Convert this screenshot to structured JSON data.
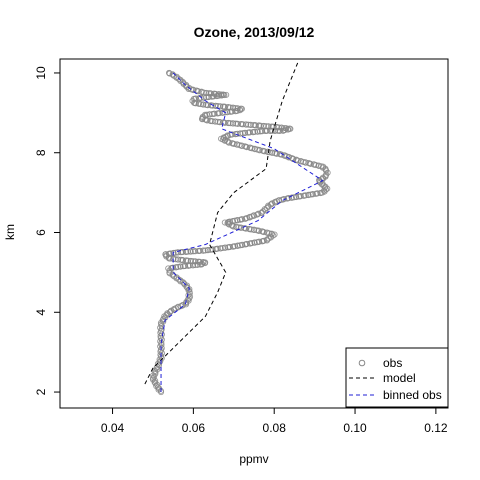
{
  "chart_data": {
    "type": "line",
    "title": "Ozone, 2013/09/12",
    "xlabel": "ppmv",
    "ylabel": "km",
    "xlim": [
      0.027,
      0.123
    ],
    "ylim": [
      1.6,
      10.35
    ],
    "xticks": [
      {
        "value": 0.04,
        "label": "0.04"
      },
      {
        "value": 0.06,
        "label": "0.06"
      },
      {
        "value": 0.08,
        "label": "0.08"
      },
      {
        "value": 0.1,
        "label": "0.10"
      },
      {
        "value": 0.12,
        "label": "0.12"
      }
    ],
    "yticks": [
      {
        "value": 2,
        "label": "2"
      },
      {
        "value": 4,
        "label": "4"
      },
      {
        "value": 6,
        "label": "6"
      },
      {
        "value": 8,
        "label": "8"
      },
      {
        "value": 10,
        "label": "10"
      }
    ],
    "grid": false,
    "legend_position": "bottom-right",
    "series": [
      {
        "name": "obs",
        "style": "points",
        "color": "#888888",
        "path": [
          [
            0.052,
            2.0
          ],
          [
            0.051,
            2.15
          ],
          [
            0.05,
            2.35
          ],
          [
            0.051,
            2.6
          ],
          [
            0.052,
            2.85
          ],
          [
            0.052,
            3.1
          ],
          [
            0.052,
            3.4
          ],
          [
            0.052,
            3.7
          ],
          [
            0.053,
            3.9
          ],
          [
            0.054,
            4.0
          ],
          [
            0.056,
            4.12
          ],
          [
            0.058,
            4.2
          ],
          [
            0.059,
            4.35
          ],
          [
            0.059,
            4.55
          ],
          [
            0.058,
            4.7
          ],
          [
            0.056,
            4.85
          ],
          [
            0.054,
            5.0
          ],
          [
            0.054,
            5.1
          ],
          [
            0.057,
            5.15
          ],
          [
            0.062,
            5.2
          ],
          [
            0.063,
            5.25
          ],
          [
            0.058,
            5.3
          ],
          [
            0.054,
            5.35
          ],
          [
            0.053,
            5.45
          ],
          [
            0.056,
            5.5
          ],
          [
            0.063,
            5.55
          ],
          [
            0.07,
            5.65
          ],
          [
            0.078,
            5.8
          ],
          [
            0.08,
            5.95
          ],
          [
            0.076,
            6.05
          ],
          [
            0.07,
            6.15
          ],
          [
            0.068,
            6.25
          ],
          [
            0.073,
            6.35
          ],
          [
            0.077,
            6.5
          ],
          [
            0.079,
            6.7
          ],
          [
            0.081,
            6.8
          ],
          [
            0.083,
            6.85
          ],
          [
            0.086,
            6.9
          ],
          [
            0.089,
            6.95
          ],
          [
            0.092,
            7.0
          ],
          [
            0.093,
            7.1
          ],
          [
            0.092,
            7.2
          ],
          [
            0.091,
            7.3
          ],
          [
            0.092,
            7.35
          ],
          [
            0.093,
            7.45
          ],
          [
            0.093,
            7.55
          ],
          [
            0.092,
            7.65
          ],
          [
            0.09,
            7.7
          ],
          [
            0.086,
            7.8
          ],
          [
            0.082,
            7.95
          ],
          [
            0.077,
            8.05
          ],
          [
            0.073,
            8.15
          ],
          [
            0.069,
            8.25
          ],
          [
            0.067,
            8.35
          ],
          [
            0.069,
            8.45
          ],
          [
            0.073,
            8.5
          ],
          [
            0.078,
            8.55
          ],
          [
            0.082,
            8.55
          ],
          [
            0.084,
            8.6
          ],
          [
            0.08,
            8.65
          ],
          [
            0.074,
            8.7
          ],
          [
            0.068,
            8.75
          ],
          [
            0.064,
            8.8
          ],
          [
            0.062,
            8.85
          ],
          [
            0.063,
            8.95
          ],
          [
            0.067,
            9.0
          ],
          [
            0.071,
            9.05
          ],
          [
            0.072,
            9.1
          ],
          [
            0.068,
            9.15
          ],
          [
            0.063,
            9.2
          ],
          [
            0.06,
            9.25
          ],
          [
            0.06,
            9.35
          ],
          [
            0.064,
            9.4
          ],
          [
            0.068,
            9.45
          ],
          [
            0.063,
            9.5
          ],
          [
            0.059,
            9.6
          ],
          [
            0.058,
            9.7
          ],
          [
            0.057,
            9.8
          ],
          [
            0.056,
            9.88
          ],
          [
            0.055,
            9.95
          ],
          [
            0.054,
            10.0
          ]
        ]
      },
      {
        "name": "model",
        "style": "dashed",
        "color": "#000000",
        "x": [
          0.048,
          0.05,
          0.056,
          0.063,
          0.066,
          0.068,
          0.064,
          0.066,
          0.07,
          0.078,
          0.079,
          0.082,
          0.086
        ],
        "y": [
          2.2,
          2.6,
          3.2,
          3.9,
          4.5,
          5.0,
          5.7,
          6.5,
          7.0,
          7.6,
          8.3,
          9.3,
          10.3
        ]
      },
      {
        "name": "binned obs",
        "style": "dashed",
        "color": "#1f1fd6",
        "x": [
          0.052,
          0.052,
          0.052,
          0.053,
          0.058,
          0.059,
          0.055,
          0.055,
          0.063,
          0.076,
          0.082,
          0.092,
          0.08,
          0.067,
          0.068,
          0.063,
          0.058,
          0.055
        ],
        "y": [
          2.0,
          2.6,
          3.2,
          3.8,
          4.2,
          4.6,
          5.0,
          5.5,
          5.7,
          6.3,
          6.8,
          7.3,
          8.1,
          8.6,
          9.0,
          9.3,
          9.7,
          10.0
        ]
      }
    ]
  }
}
